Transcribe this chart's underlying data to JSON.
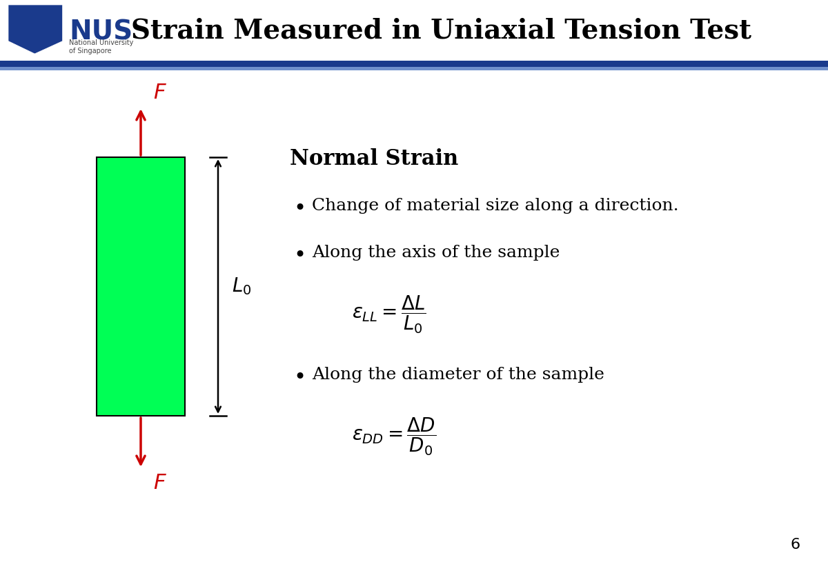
{
  "title": "Strain Measured in Uniaxial Tension Test",
  "title_fontsize": 28,
  "title_color": "#000000",
  "bg_color": "#ffffff",
  "header_bar_color_dark": "#1a3a8c",
  "header_bar_color_light": "#7090cc",
  "rect_color": "#00ff55",
  "rect_edge_color": "#000000",
  "arrow_color": "#cc0000",
  "text_color": "#000000",
  "page_number": "6",
  "normal_strain_title": "Normal Strain",
  "bullet1": "Change of material size along a direction.",
  "bullet2": "Along the axis of the sample",
  "bullet3": "Along the diameter of the sample",
  "L0_label": "$L_0$",
  "nus_blue": "#1a3a8c",
  "nus_orange": "#cc5500",
  "logo_box_color": "#1a3a8c"
}
